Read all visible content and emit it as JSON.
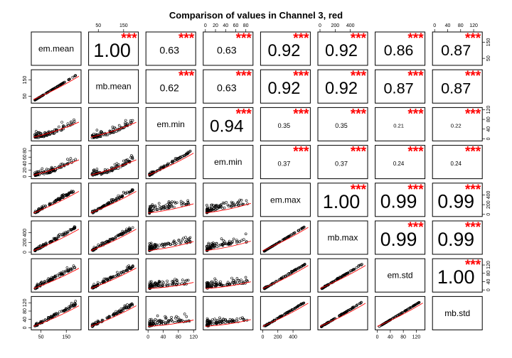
{
  "chart_data": {
    "type": "scatter",
    "subtype": "pairs-correlation-matrix",
    "title": "Comparison of values in Channel 3, red",
    "variables": [
      "em.mean",
      "mb.mean",
      "em.min",
      "em.min",
      "em.max",
      "mb.max",
      "em.std",
      "mb.std"
    ],
    "correlations": [
      [
        null,
        1.0,
        0.63,
        0.63,
        0.92,
        0.92,
        0.86,
        0.87
      ],
      [
        null,
        null,
        0.62,
        0.63,
        0.92,
        0.92,
        0.87,
        0.87
      ],
      [
        null,
        null,
        null,
        0.94,
        0.35,
        0.35,
        0.21,
        0.22
      ],
      [
        null,
        null,
        null,
        null,
        0.37,
        0.37,
        0.24,
        0.24
      ],
      [
        null,
        null,
        null,
        null,
        null,
        1.0,
        0.99,
        0.99
      ],
      [
        null,
        null,
        null,
        null,
        null,
        null,
        0.99,
        0.99
      ],
      [
        null,
        null,
        null,
        null,
        null,
        null,
        null,
        1.0
      ],
      [
        null,
        null,
        null,
        null,
        null,
        null,
        null,
        null
      ]
    ],
    "significance": "***",
    "axis_ranges": [
      [
        20,
        200
      ],
      [
        20,
        200
      ],
      [
        0,
        120
      ],
      [
        0,
        90
      ],
      [
        0,
        600
      ],
      [
        0,
        600
      ],
      [
        0,
        140
      ],
      [
        0,
        140
      ]
    ],
    "tick_labels": [
      [
        "50",
        "150"
      ],
      [
        "50",
        "150"
      ],
      [
        "0",
        "40",
        "80",
        "120"
      ],
      [
        "0",
        "20",
        "40",
        "60",
        "80"
      ],
      [
        "0",
        "200",
        "400"
      ],
      [
        "0",
        "200",
        "400"
      ],
      [
        "0",
        "40",
        "80",
        "120"
      ],
      [
        "0",
        "40",
        "80",
        "120"
      ]
    ],
    "tick_values": [
      [
        50,
        150
      ],
      [
        50,
        150
      ],
      [
        0,
        40,
        80,
        120
      ],
      [
        0,
        20,
        40,
        60,
        80
      ],
      [
        0,
        200,
        400
      ],
      [
        0,
        200,
        400
      ],
      [
        0,
        40,
        80,
        120
      ],
      [
        0,
        40,
        80,
        120
      ]
    ],
    "point_color": "#000000",
    "fit_line_color": "#ff0000",
    "star_color": "#ff0000"
  }
}
